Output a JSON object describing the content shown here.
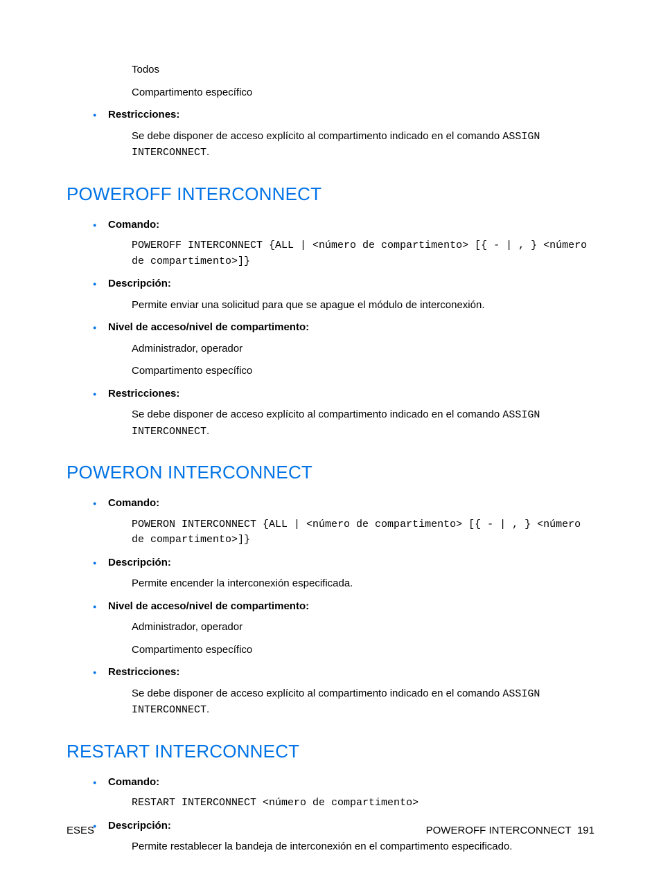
{
  "intro": {
    "body_lines": [
      "Todos",
      "Compartimento específico"
    ],
    "restr_label": "Restricciones:",
    "restr_text_prefix": "Se debe disponer de acceso explícito al compartimento indicado en el comando ",
    "restr_code": "ASSIGN INTERCONNECT",
    "restr_text_suffix": "."
  },
  "sections": [
    {
      "title": "POWEROFF INTERCONNECT",
      "items": [
        {
          "label": "Comando:",
          "code": "POWEROFF INTERCONNECT {ALL | <número de compartimento> [{ - | , } <número de compartimento>]}"
        },
        {
          "label": "Descripción:",
          "body": [
            "Permite enviar una solicitud para que se apague el módulo de interconexión."
          ]
        },
        {
          "label": "Nivel de acceso/nivel de compartimento:",
          "body": [
            "Administrador, operador",
            "Compartimento específico"
          ]
        },
        {
          "label": "Restricciones:",
          "mixed_prefix": "Se debe disponer de acceso explícito al compartimento indicado en el comando ",
          "mixed_code": "ASSIGN INTERCONNECT",
          "mixed_suffix": "."
        }
      ]
    },
    {
      "title": "POWERON INTERCONNECT",
      "items": [
        {
          "label": "Comando:",
          "code": "POWERON INTERCONNECT {ALL | <número de compartimento> [{ - | , } <número de compartimento>]}"
        },
        {
          "label": "Descripción:",
          "body": [
            "Permite encender la interconexión especificada."
          ]
        },
        {
          "label": "Nivel de acceso/nivel de compartimento:",
          "body": [
            "Administrador, operador",
            "Compartimento específico"
          ]
        },
        {
          "label": "Restricciones:",
          "mixed_prefix": "Se debe disponer de acceso explícito al compartimento indicado en el comando ",
          "mixed_code": "ASSIGN INTERCONNECT",
          "mixed_suffix": "."
        }
      ]
    },
    {
      "title": "RESTART INTERCONNECT",
      "items": [
        {
          "label": "Comando:",
          "code": "RESTART INTERCONNECT <número de compartimento>"
        },
        {
          "label": "Descripción:",
          "body": [
            "Permite restablecer la bandeja de interconexión en el compartimento especificado."
          ]
        }
      ]
    }
  ],
  "footer": {
    "left": "ESES",
    "right_label": "POWEROFF INTERCONNECT",
    "right_page": "191"
  }
}
